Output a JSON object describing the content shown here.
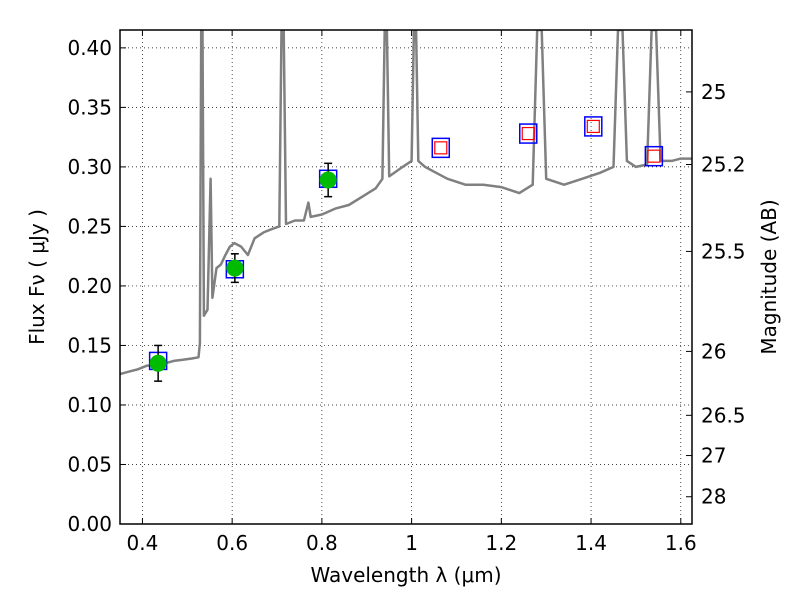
{
  "chart_data": {
    "type": "line",
    "title": "",
    "xlabel": "Wavelength  λ (μm)",
    "ylabel": "Flux  Fν  ( μJy )",
    "y2label": "Magnitude (AB)",
    "xlim": [
      0.35,
      1.625
    ],
    "ylim": [
      0.0,
      0.415
    ],
    "grid": true,
    "x_ticks": [
      0.4,
      0.6,
      0.8,
      1.0,
      1.2,
      1.4,
      1.6
    ],
    "x_tick_labels": [
      "0.4",
      "0.6",
      "0.8",
      "1",
      "1.2",
      "1.4",
      "1.6"
    ],
    "y_ticks": [
      0.0,
      0.05,
      0.1,
      0.15,
      0.2,
      0.25,
      0.3,
      0.35,
      0.4
    ],
    "y_tick_labels": [
      "0.00",
      "0.05",
      "0.10",
      "0.15",
      "0.20",
      "0.25",
      "0.30",
      "0.35",
      "0.40"
    ],
    "y2_ticks": [
      {
        "label": "25",
        "flux": 0.363
      },
      {
        "label": "25.2",
        "flux": 0.302
      },
      {
        "label": "25.5",
        "flux": 0.229
      },
      {
        "label": "26",
        "flux": 0.145
      },
      {
        "label": "26.5",
        "flux": 0.0913
      },
      {
        "label": "27",
        "flux": 0.0575
      },
      {
        "label": "28",
        "flux": 0.0229
      }
    ],
    "series": [
      {
        "name": "model-sed",
        "style": "line",
        "color": "#808080",
        "points": [
          [
            0.35,
            0.126
          ],
          [
            0.37,
            0.128
          ],
          [
            0.39,
            0.13
          ],
          [
            0.41,
            0.133
          ],
          [
            0.43,
            0.134
          ],
          [
            0.45,
            0.135
          ],
          [
            0.47,
            0.137
          ],
          [
            0.49,
            0.138
          ],
          [
            0.51,
            0.139
          ],
          [
            0.525,
            0.14
          ],
          [
            0.528,
            0.152
          ],
          [
            0.531,
            0.415
          ],
          [
            0.534,
            0.415
          ],
          [
            0.537,
            0.175
          ],
          [
            0.545,
            0.18
          ],
          [
            0.552,
            0.29
          ],
          [
            0.556,
            0.19
          ],
          [
            0.565,
            0.215
          ],
          [
            0.575,
            0.218
          ],
          [
            0.585,
            0.226
          ],
          [
            0.595,
            0.233
          ],
          [
            0.605,
            0.236
          ],
          [
            0.62,
            0.233
          ],
          [
            0.635,
            0.226
          ],
          [
            0.65,
            0.24
          ],
          [
            0.67,
            0.245
          ],
          [
            0.69,
            0.248
          ],
          [
            0.705,
            0.25
          ],
          [
            0.71,
            0.415
          ],
          [
            0.715,
            0.415
          ],
          [
            0.72,
            0.252
          ],
          [
            0.74,
            0.255
          ],
          [
            0.76,
            0.255
          ],
          [
            0.77,
            0.27
          ],
          [
            0.775,
            0.258
          ],
          [
            0.8,
            0.26
          ],
          [
            0.83,
            0.265
          ],
          [
            0.86,
            0.268
          ],
          [
            0.89,
            0.275
          ],
          [
            0.92,
            0.282
          ],
          [
            0.935,
            0.29
          ],
          [
            0.94,
            0.415
          ],
          [
            0.945,
            0.415
          ],
          [
            0.95,
            0.292
          ],
          [
            0.98,
            0.3
          ],
          [
            1.0,
            0.305
          ],
          [
            1.005,
            0.415
          ],
          [
            1.01,
            0.415
          ],
          [
            1.015,
            0.305
          ],
          [
            1.03,
            0.3
          ],
          [
            1.05,
            0.296
          ],
          [
            1.08,
            0.29
          ],
          [
            1.12,
            0.285
          ],
          [
            1.16,
            0.285
          ],
          [
            1.2,
            0.283
          ],
          [
            1.24,
            0.278
          ],
          [
            1.27,
            0.285
          ],
          [
            1.28,
            0.415
          ],
          [
            1.29,
            0.415
          ],
          [
            1.3,
            0.29
          ],
          [
            1.34,
            0.285
          ],
          [
            1.38,
            0.29
          ],
          [
            1.42,
            0.295
          ],
          [
            1.45,
            0.3
          ],
          [
            1.46,
            0.415
          ],
          [
            1.47,
            0.415
          ],
          [
            1.48,
            0.305
          ],
          [
            1.5,
            0.3
          ],
          [
            1.525,
            0.302
          ],
          [
            1.535,
            0.415
          ],
          [
            1.545,
            0.415
          ],
          [
            1.555,
            0.305
          ],
          [
            1.58,
            0.305
          ],
          [
            1.6,
            0.307
          ],
          [
            1.625,
            0.307
          ]
        ]
      },
      {
        "name": "observed-photometry",
        "style": "marker-circle",
        "color": "#00bb00",
        "points": [
          {
            "x": 0.435,
            "y": 0.135,
            "err": 0.015
          },
          {
            "x": 0.606,
            "y": 0.215,
            "err": 0.012
          },
          {
            "x": 0.814,
            "y": 0.289,
            "err": 0.014
          }
        ]
      },
      {
        "name": "model-bandpass-flux",
        "style": "marker-square",
        "color": "#0000ff",
        "points": [
          {
            "x": 0.435,
            "y": 0.137
          },
          {
            "x": 0.606,
            "y": 0.214
          },
          {
            "x": 0.814,
            "y": 0.29
          }
        ]
      },
      {
        "name": "predicted-flux",
        "style": "marker-square-double",
        "color": "#ff0000",
        "points": [
          {
            "x": 1.065,
            "y": 0.316
          },
          {
            "x": 1.26,
            "y": 0.328
          },
          {
            "x": 1.405,
            "y": 0.334
          },
          {
            "x": 1.54,
            "y": 0.309
          }
        ]
      }
    ]
  }
}
